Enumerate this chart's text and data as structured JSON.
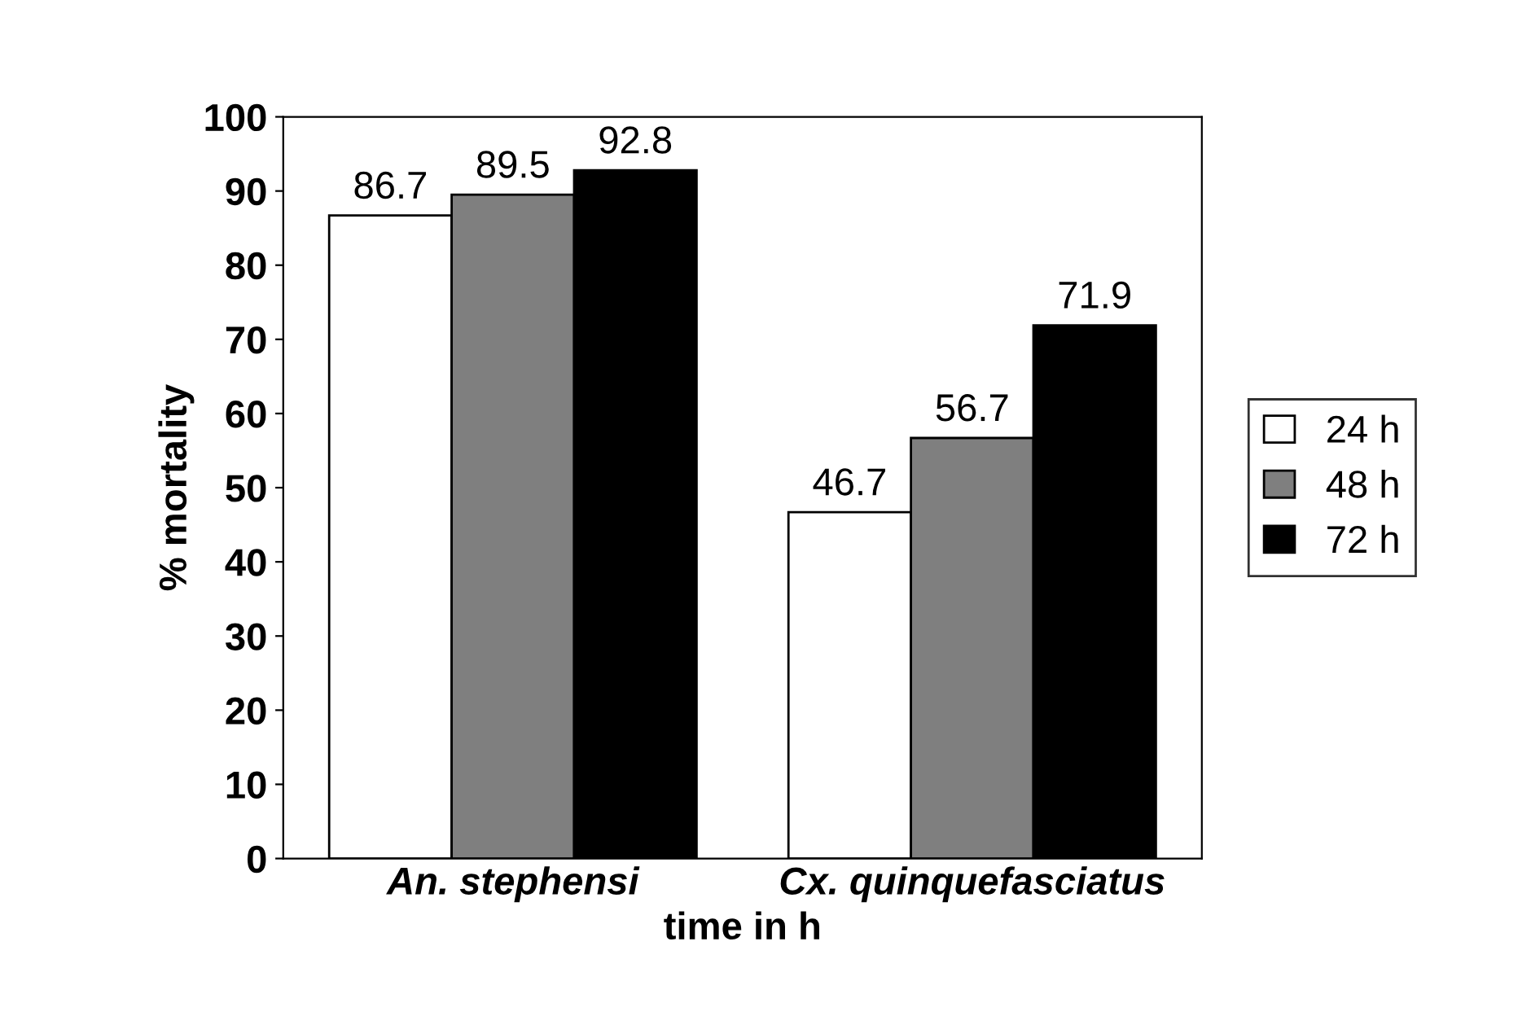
{
  "chart_data": {
    "type": "bar",
    "xlabel": "time in h",
    "ylabel": "% mortality",
    "categories": [
      "An. stephensi",
      "Cx. quinquefasciatus"
    ],
    "series": [
      {
        "name": "24 h",
        "color": "#ffffff",
        "values": [
          86.7,
          46.7
        ]
      },
      {
        "name": "48 h",
        "color": "#7f7f7f",
        "values": [
          89.5,
          56.7
        ]
      },
      {
        "name": "72 h",
        "color": "#000000",
        "values": [
          92.8,
          71.9
        ]
      }
    ],
    "ylim": [
      0,
      100
    ],
    "yticks": [
      0,
      10,
      20,
      30,
      40,
      50,
      60,
      70,
      80,
      90,
      100
    ],
    "data_labels": true,
    "grid": false,
    "legend": "right"
  }
}
